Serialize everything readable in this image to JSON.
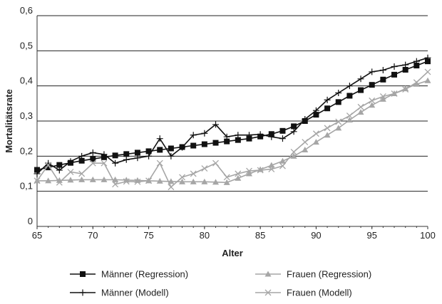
{
  "chart_data": {
    "type": "line",
    "xlabel": "Alter",
    "ylabel": "Mortalitätsrate",
    "xlim": [
      65,
      100
    ],
    "ylim": [
      0,
      0.6
    ],
    "x_ticks": [
      "65",
      "70",
      "75",
      "80",
      "85",
      "90",
      "95",
      "100"
    ],
    "y_ticks": [
      "0",
      "0,1",
      "0,2",
      "0,3",
      "0,4",
      "0,5",
      "0,6"
    ],
    "grid": "horizontal",
    "legend_position": "bottom",
    "series": [
      {
        "name": "Männer (Regression)",
        "color": "#111111",
        "marker": "square",
        "x": [
          65,
          66,
          67,
          68,
          69,
          70,
          71,
          72,
          73,
          74,
          75,
          76,
          77,
          78,
          79,
          80,
          81,
          82,
          83,
          84,
          85,
          86,
          87,
          88,
          89,
          90,
          91,
          92,
          93,
          94,
          95,
          96,
          97,
          98,
          99,
          100
        ],
        "y": [
          0.161,
          0.168,
          0.175,
          0.181,
          0.187,
          0.192,
          0.197,
          0.202,
          0.206,
          0.21,
          0.214,
          0.218,
          0.222,
          0.226,
          0.23,
          0.234,
          0.238,
          0.242,
          0.246,
          0.25,
          0.256,
          0.263,
          0.272,
          0.285,
          0.3,
          0.318,
          0.336,
          0.354,
          0.372,
          0.388,
          0.403,
          0.418,
          0.432,
          0.446,
          0.458,
          0.47
        ]
      },
      {
        "name": "Männer (Modell)",
        "color": "#111111",
        "marker": "plus",
        "x": [
          65,
          66,
          67,
          68,
          69,
          70,
          71,
          72,
          73,
          74,
          75,
          76,
          77,
          78,
          79,
          80,
          81,
          82,
          83,
          84,
          85,
          86,
          87,
          88,
          89,
          90,
          91,
          92,
          93,
          94,
          95,
          96,
          97,
          98,
          99,
          100
        ],
        "y": [
          0.15,
          0.18,
          0.16,
          0.185,
          0.2,
          0.21,
          0.205,
          0.18,
          0.19,
          0.195,
          0.2,
          0.25,
          0.2,
          0.225,
          0.26,
          0.265,
          0.29,
          0.255,
          0.26,
          0.26,
          0.262,
          0.255,
          0.25,
          0.27,
          0.305,
          0.33,
          0.36,
          0.38,
          0.4,
          0.42,
          0.44,
          0.445,
          0.455,
          0.46,
          0.47,
          0.48
        ]
      },
      {
        "name": "Frauen (Regression)",
        "color": "#a6a6a6",
        "marker": "triangle",
        "x": [
          65,
          66,
          67,
          68,
          69,
          70,
          71,
          72,
          73,
          74,
          75,
          76,
          77,
          78,
          79,
          80,
          81,
          82,
          83,
          84,
          85,
          86,
          87,
          88,
          89,
          90,
          91,
          92,
          93,
          94,
          95,
          96,
          97,
          98,
          99,
          100
        ],
        "y": [
          0.13,
          0.13,
          0.131,
          0.132,
          0.133,
          0.133,
          0.133,
          0.133,
          0.132,
          0.131,
          0.13,
          0.129,
          0.128,
          0.127,
          0.127,
          0.127,
          0.126,
          0.125,
          0.137,
          0.15,
          0.162,
          0.174,
          0.186,
          0.2,
          0.218,
          0.24,
          0.26,
          0.28,
          0.303,
          0.325,
          0.345,
          0.362,
          0.378,
          0.392,
          0.405,
          0.415
        ]
      },
      {
        "name": "Frauen (Modell)",
        "color": "#a6a6a6",
        "marker": "x",
        "x": [
          65,
          66,
          67,
          68,
          69,
          70,
          71,
          72,
          73,
          74,
          75,
          76,
          77,
          78,
          79,
          80,
          81,
          82,
          83,
          84,
          85,
          86,
          87,
          88,
          89,
          90,
          91,
          92,
          93,
          94,
          95,
          96,
          97,
          98,
          99,
          100
        ],
        "y": [
          0.13,
          0.175,
          0.125,
          0.155,
          0.15,
          0.18,
          0.18,
          0.12,
          0.128,
          0.127,
          0.13,
          0.18,
          0.112,
          0.14,
          0.15,
          0.165,
          0.18,
          0.14,
          0.15,
          0.158,
          0.16,
          0.163,
          0.172,
          0.212,
          0.24,
          0.264,
          0.28,
          0.298,
          0.315,
          0.34,
          0.358,
          0.37,
          0.378,
          0.39,
          0.41,
          0.44
        ]
      }
    ]
  }
}
